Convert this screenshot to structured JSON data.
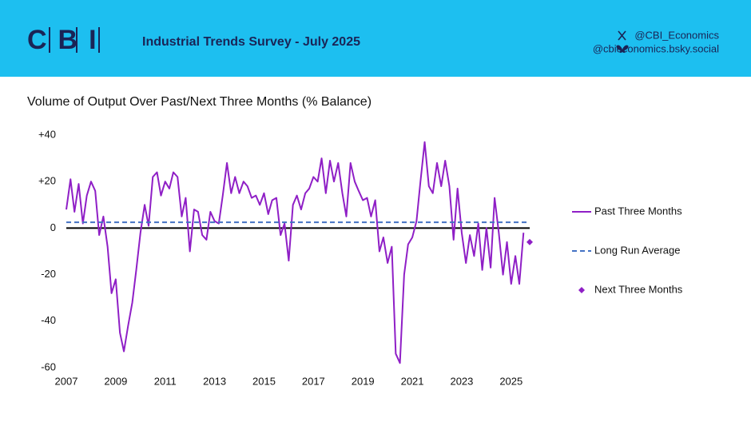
{
  "header": {
    "logo": "CBI",
    "title": "Industrial Trends Survey - July 2025",
    "x_handle": "@CBI_Economics",
    "bsky_handle": "@cbieconomics.bsky.social"
  },
  "chart_data": {
    "type": "line",
    "title": "Volume of Output Over Past/Next Three Months (% Balance)",
    "x": [
      2007,
      2007.17,
      2007.33,
      2007.5,
      2007.67,
      2007.83,
      2008,
      2008.17,
      2008.33,
      2008.5,
      2008.67,
      2008.83,
      2009,
      2009.17,
      2009.33,
      2009.5,
      2009.67,
      2009.83,
      2010,
      2010.17,
      2010.33,
      2010.5,
      2010.67,
      2010.83,
      2011,
      2011.17,
      2011.33,
      2011.5,
      2011.67,
      2011.83,
      2012,
      2012.17,
      2012.33,
      2012.5,
      2012.67,
      2012.83,
      2013,
      2013.17,
      2013.33,
      2013.5,
      2013.67,
      2013.83,
      2014,
      2014.17,
      2014.33,
      2014.5,
      2014.67,
      2014.83,
      2015,
      2015.17,
      2015.33,
      2015.5,
      2015.67,
      2015.83,
      2016,
      2016.17,
      2016.33,
      2016.5,
      2016.67,
      2016.83,
      2017,
      2017.17,
      2017.33,
      2017.5,
      2017.67,
      2017.83,
      2018,
      2018.17,
      2018.33,
      2018.5,
      2018.67,
      2018.83,
      2019,
      2019.17,
      2019.33,
      2019.5,
      2019.67,
      2019.83,
      2020,
      2020.17,
      2020.33,
      2020.5,
      2020.67,
      2020.83,
      2021,
      2021.17,
      2021.33,
      2021.5,
      2021.67,
      2021.83,
      2022,
      2022.17,
      2022.33,
      2022.5,
      2022.67,
      2022.83,
      2023,
      2023.17,
      2023.33,
      2023.5,
      2023.67,
      2023.83,
      2024,
      2024.17,
      2024.33,
      2024.5,
      2024.67,
      2024.83,
      2025,
      2025.17,
      2025.33,
      2025.5
    ],
    "series": [
      {
        "name": "Past Three Months",
        "color": "#8f1fc6",
        "values": [
          8,
          21,
          7,
          19,
          2,
          14,
          20,
          16,
          -3,
          5,
          -8,
          -28,
          -22,
          -45,
          -53,
          -42,
          -32,
          -18,
          -2,
          10,
          1,
          22,
          24,
          14,
          20,
          17,
          24,
          22,
          5,
          13,
          -10,
          8,
          7,
          -3,
          -5,
          7,
          3,
          2,
          14,
          28,
          15,
          22,
          15,
          20,
          18,
          13,
          14,
          10,
          15,
          6,
          12,
          13,
          -3,
          2,
          -14,
          10,
          14,
          8,
          15,
          17,
          22,
          20,
          30,
          15,
          29,
          20,
          28,
          15,
          5,
          28,
          20,
          16,
          12,
          13,
          5,
          12,
          -10,
          -4,
          -15,
          -8,
          -54,
          -58,
          -20,
          -7,
          -4,
          3,
          20,
          37,
          18,
          15,
          28,
          18,
          29,
          18,
          -5,
          17,
          -2,
          -15,
          -3,
          -12,
          2,
          -18,
          0,
          -17,
          13,
          -2,
          -20,
          -6,
          -24,
          -12,
          -24,
          -2
        ]
      },
      {
        "name": "Long Run Average",
        "color": "#4472c4",
        "dashed": true,
        "value": 2.5
      },
      {
        "name": "Next Three Months",
        "color": "#8f1fc6",
        "marker": "diamond",
        "x": [
          2025.75
        ],
        "values": [
          -6
        ]
      }
    ],
    "xlim": [
      2007,
      2025.75
    ],
    "xticks": [
      2007,
      2009,
      2011,
      2013,
      2015,
      2017,
      2019,
      2021,
      2023,
      2025
    ],
    "ylim": [
      -60,
      40
    ],
    "yticks": [
      {
        "value": 40,
        "label": "+40"
      },
      {
        "value": 20,
        "label": "+20"
      },
      0,
      -20,
      -40,
      -60
    ]
  }
}
